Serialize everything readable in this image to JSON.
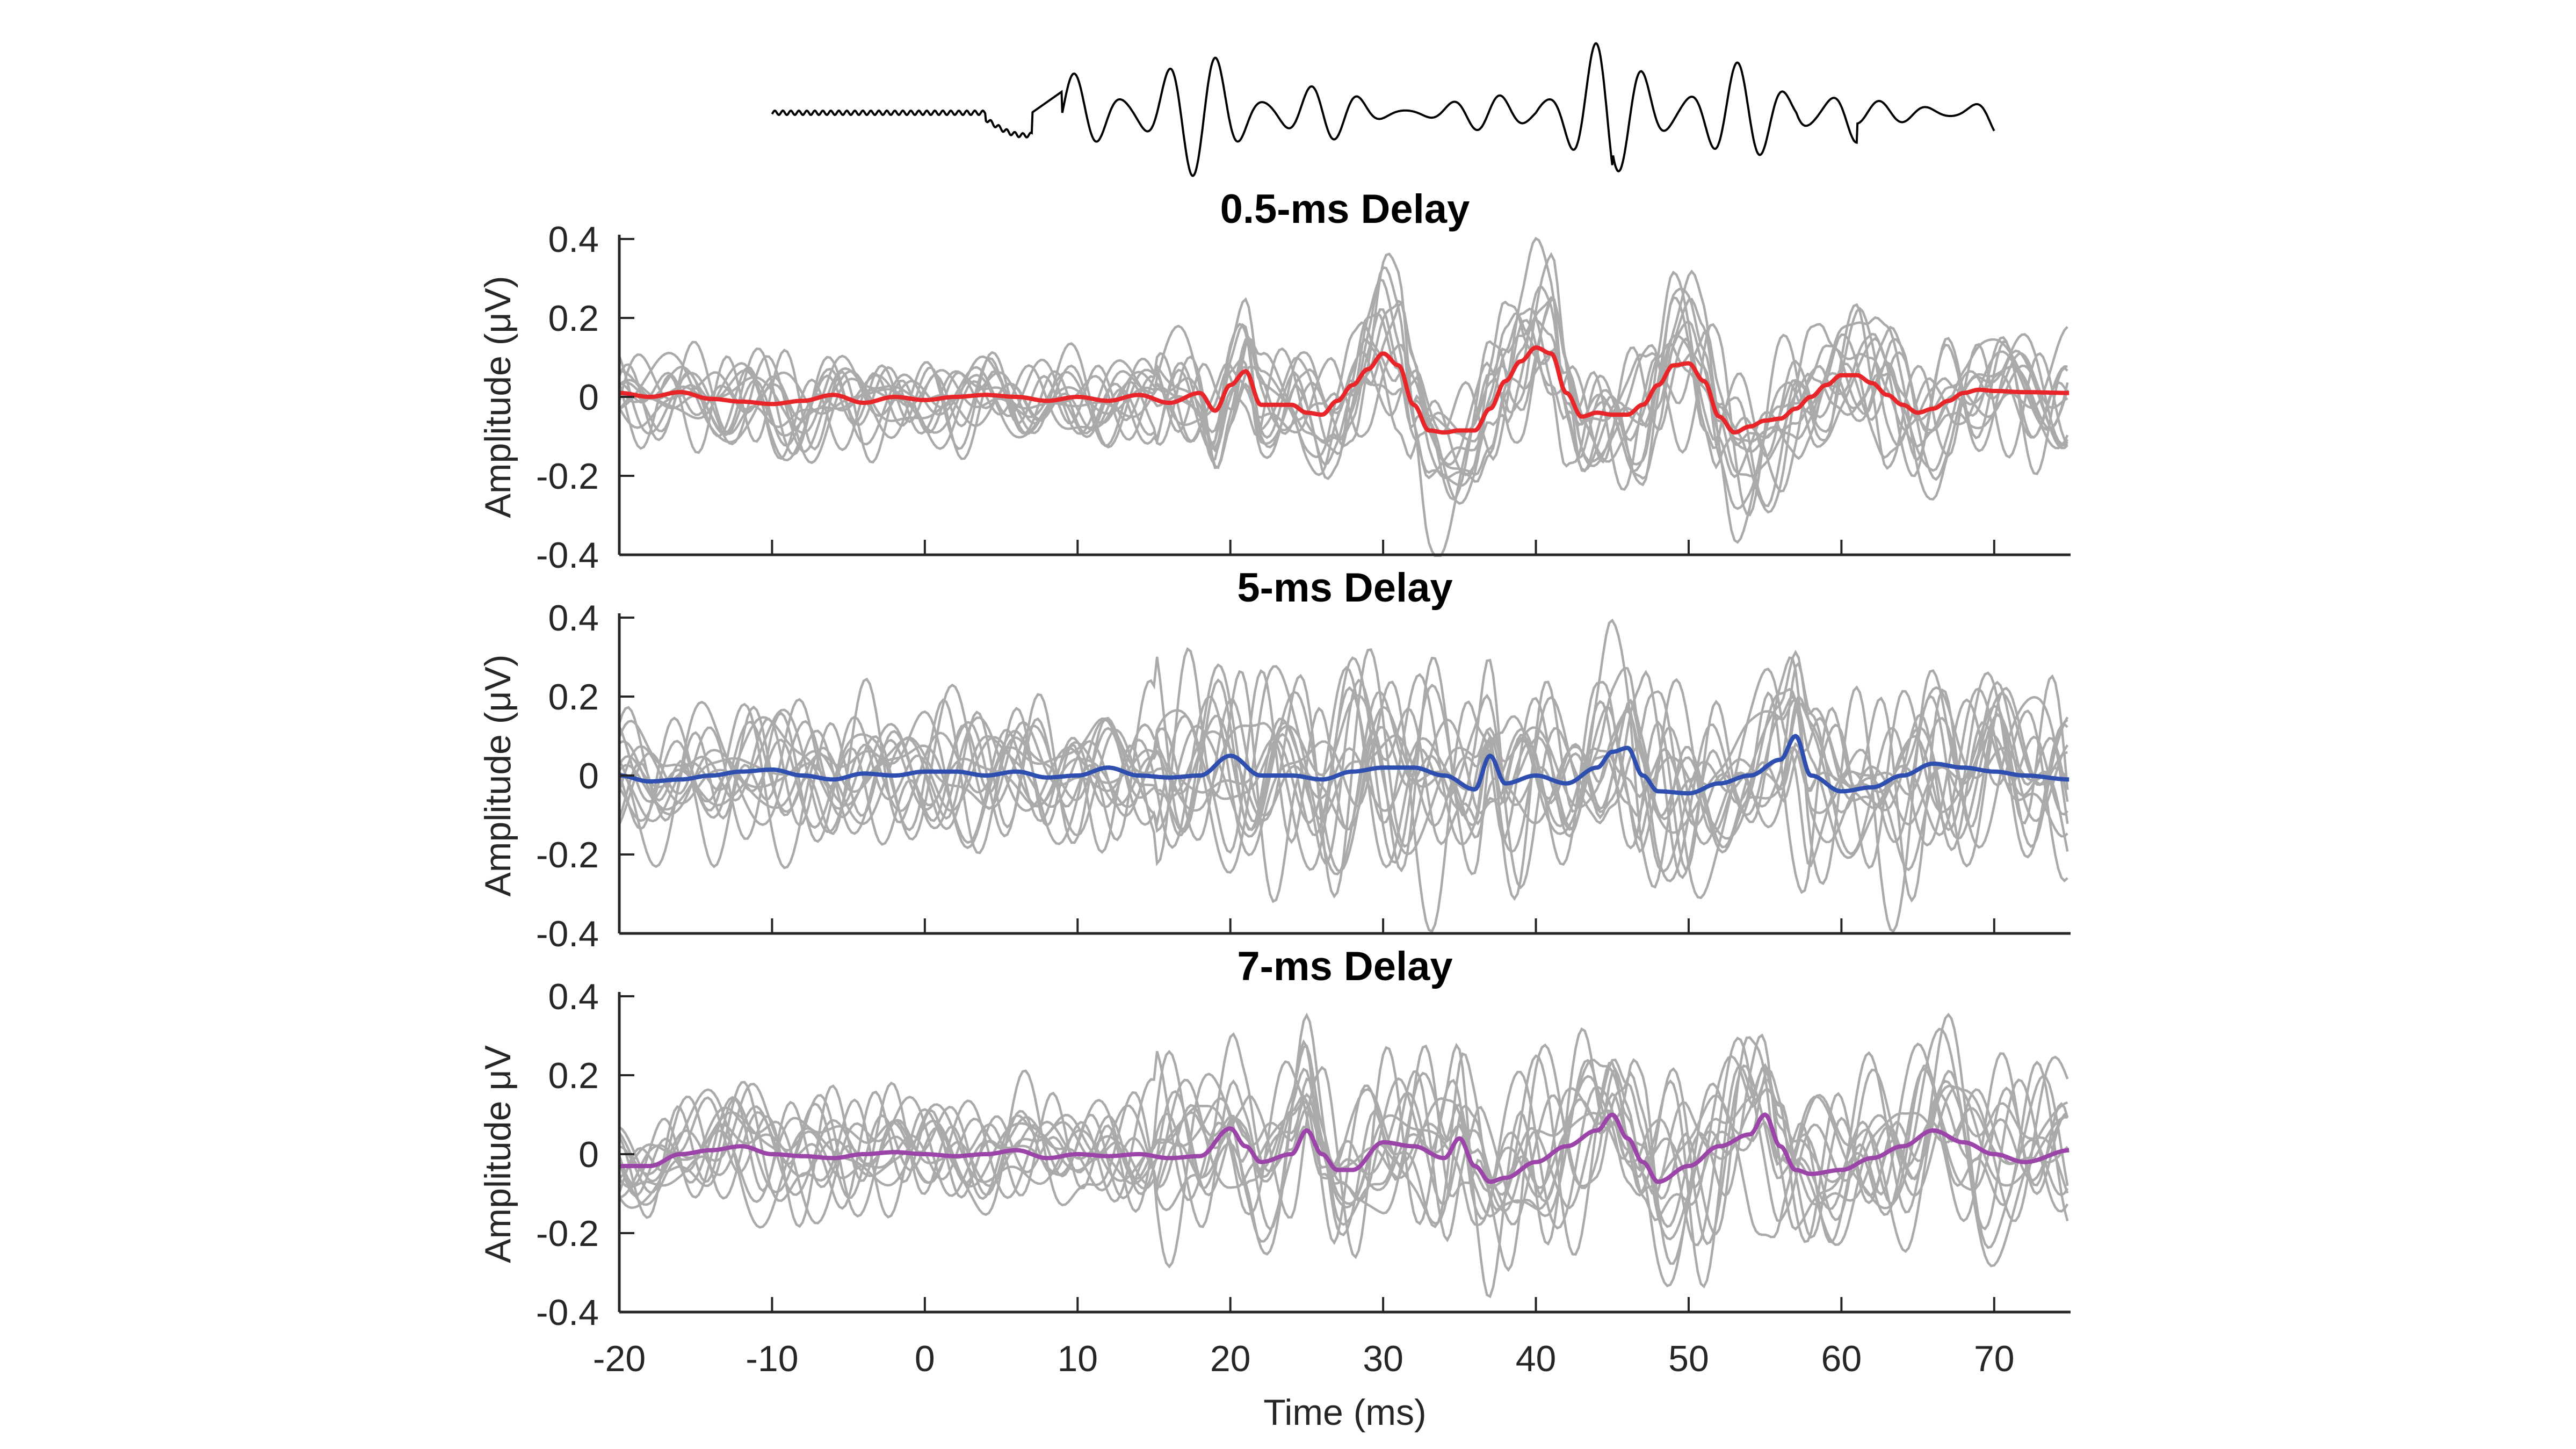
{
  "chart_data": {
    "type": "line",
    "xlabel": "Time (ms)",
    "xlim": [
      -20,
      75
    ],
    "xticks": [
      "-20",
      "-10",
      "0",
      "10",
      "20",
      "30",
      "40",
      "50",
      "60",
      "70"
    ],
    "xtick_values": [
      -20,
      -10,
      0,
      10,
      20,
      30,
      40,
      50,
      60,
      70
    ],
    "stimulus": {
      "description_label": "",
      "color": "#000000",
      "xlim": [
        -10,
        70
      ]
    },
    "panels": [
      {
        "title": "0.5-ms Delay",
        "ylabel": "Amplitude (μV)",
        "ylim": [
          -0.4,
          0.4
        ],
        "yticks": [
          "-0.4",
          "-0.2",
          "0",
          "0.2",
          "0.4"
        ],
        "ytick_values": [
          -0.4,
          -0.2,
          0,
          0.2,
          0.4
        ],
        "mean_color": "#e8262a",
        "trial_color": "#aaaaaa",
        "trials": 12,
        "trial_spread": 0.045,
        "mean": {
          "x": [
            -20,
            -18,
            -16,
            -14,
            -12,
            -10,
            -8,
            -6,
            -4,
            -2,
            0,
            2,
            4,
            6,
            8,
            10,
            12,
            14,
            16,
            18,
            19,
            20,
            21,
            22,
            23,
            24,
            25,
            26,
            27,
            28,
            29,
            30,
            31,
            32,
            33,
            34,
            35,
            36,
            37,
            38,
            39,
            40,
            41,
            42,
            43,
            44,
            45,
            46,
            47,
            48,
            49,
            50,
            51,
            52,
            53,
            54,
            55,
            56,
            57,
            58,
            59,
            60,
            61,
            62,
            63,
            64,
            65,
            66,
            67,
            68,
            69,
            70,
            72,
            75
          ],
          "y": [
            0.01,
            0.0,
            0.012,
            -0.005,
            -0.012,
            -0.018,
            -0.01,
            0.005,
            -0.015,
            0.0,
            -0.008,
            0.0,
            0.005,
            0.0,
            -0.01,
            0.0,
            -0.01,
            0.005,
            -0.015,
            0.01,
            -0.035,
            0.03,
            0.065,
            -0.02,
            -0.02,
            -0.02,
            -0.04,
            -0.045,
            -0.01,
            0.03,
            0.07,
            0.11,
            0.08,
            -0.02,
            -0.085,
            -0.09,
            -0.085,
            -0.085,
            -0.03,
            0.04,
            0.09,
            0.125,
            0.11,
            0.01,
            -0.05,
            -0.04,
            -0.045,
            -0.045,
            -0.02,
            0.03,
            0.08,
            0.085,
            0.04,
            -0.05,
            -0.09,
            -0.075,
            -0.06,
            -0.055,
            -0.03,
            0.0,
            0.03,
            0.055,
            0.055,
            0.035,
            0.005,
            -0.02,
            -0.04,
            -0.03,
            -0.01,
            0.01,
            0.018,
            0.015,
            0.012,
            0.01
          ]
        }
      },
      {
        "title": "5-ms Delay",
        "ylabel": "Amplitude (μV)",
        "ylim": [
          -0.4,
          0.4
        ],
        "yticks": [
          "-0.4",
          "-0.2",
          "0",
          "0.2",
          "0.4"
        ],
        "ytick_values": [
          -0.4,
          -0.2,
          0,
          0.2,
          0.4
        ],
        "mean_color": "#2f4fb0",
        "trial_color": "#aaaaaa",
        "trials": 13,
        "trial_spread": 0.065,
        "mean": {
          "x": [
            -20,
            -18,
            -16,
            -14,
            -12,
            -10,
            -8,
            -6,
            -4,
            -2,
            0,
            2,
            4,
            6,
            8,
            10,
            12,
            14,
            16,
            18,
            20,
            22,
            24,
            26,
            28,
            30,
            32,
            34,
            36,
            37,
            38,
            40,
            42,
            44,
            45,
            46,
            47,
            48,
            50,
            52,
            54,
            56,
            57,
            58,
            60,
            62,
            64,
            66,
            68,
            70,
            72,
            75
          ],
          "y": [
            0.0,
            -0.015,
            -0.01,
            0.0,
            0.01,
            0.015,
            0.0,
            -0.01,
            0.005,
            0.0,
            0.01,
            0.01,
            0.0,
            0.01,
            -0.005,
            0.0,
            0.02,
            0.0,
            -0.005,
            0.0,
            0.05,
            0.0,
            0.0,
            -0.01,
            0.01,
            0.02,
            0.02,
            0.0,
            -0.035,
            0.05,
            -0.02,
            0.0,
            -0.02,
            0.02,
            0.06,
            0.07,
            0.0,
            -0.04,
            -0.045,
            -0.02,
            0.0,
            0.04,
            0.1,
            0.0,
            -0.04,
            -0.03,
            0.0,
            0.03,
            0.02,
            0.01,
            0.0,
            -0.01
          ]
        }
      },
      {
        "title": "7-ms Delay",
        "ylabel": "Amplitude μV",
        "ylim": [
          -0.4,
          0.4
        ],
        "yticks": [
          "-0.4",
          "-0.2",
          "0",
          "0.2",
          "0.4"
        ],
        "ytick_values": [
          -0.4,
          -0.2,
          0,
          0.2,
          0.4
        ],
        "mean_color": "#9b45a8",
        "trial_color": "#aaaaaa",
        "trials": 12,
        "trial_spread": 0.06,
        "mean": {
          "x": [
            -20,
            -18,
            -16,
            -14,
            -12,
            -10,
            -8,
            -6,
            -4,
            -2,
            0,
            2,
            4,
            6,
            8,
            10,
            12,
            14,
            16,
            18,
            20,
            21,
            22,
            24,
            25,
            26,
            27,
            28,
            30,
            32,
            34,
            35,
            36,
            37,
            38,
            40,
            42,
            44,
            45,
            46,
            47,
            48,
            50,
            52,
            54,
            55,
            56,
            57,
            58,
            60,
            62,
            64,
            66,
            68,
            70,
            72,
            75
          ],
          "y": [
            -0.03,
            -0.03,
            0.0,
            0.01,
            0.02,
            0.0,
            -0.005,
            -0.01,
            0.0,
            0.005,
            0.0,
            -0.005,
            0.0,
            0.01,
            -0.01,
            0.0,
            -0.005,
            0.0,
            -0.01,
            -0.005,
            0.065,
            0.02,
            -0.02,
            0.0,
            0.06,
            0.0,
            -0.04,
            -0.04,
            0.03,
            0.02,
            -0.01,
            0.04,
            -0.03,
            -0.07,
            -0.06,
            -0.02,
            0.02,
            0.06,
            0.1,
            0.04,
            -0.02,
            -0.07,
            -0.03,
            0.02,
            0.05,
            0.1,
            0.02,
            -0.04,
            -0.05,
            -0.04,
            -0.01,
            0.02,
            0.06,
            0.03,
            0.0,
            -0.02,
            0.01
          ]
        }
      }
    ]
  }
}
